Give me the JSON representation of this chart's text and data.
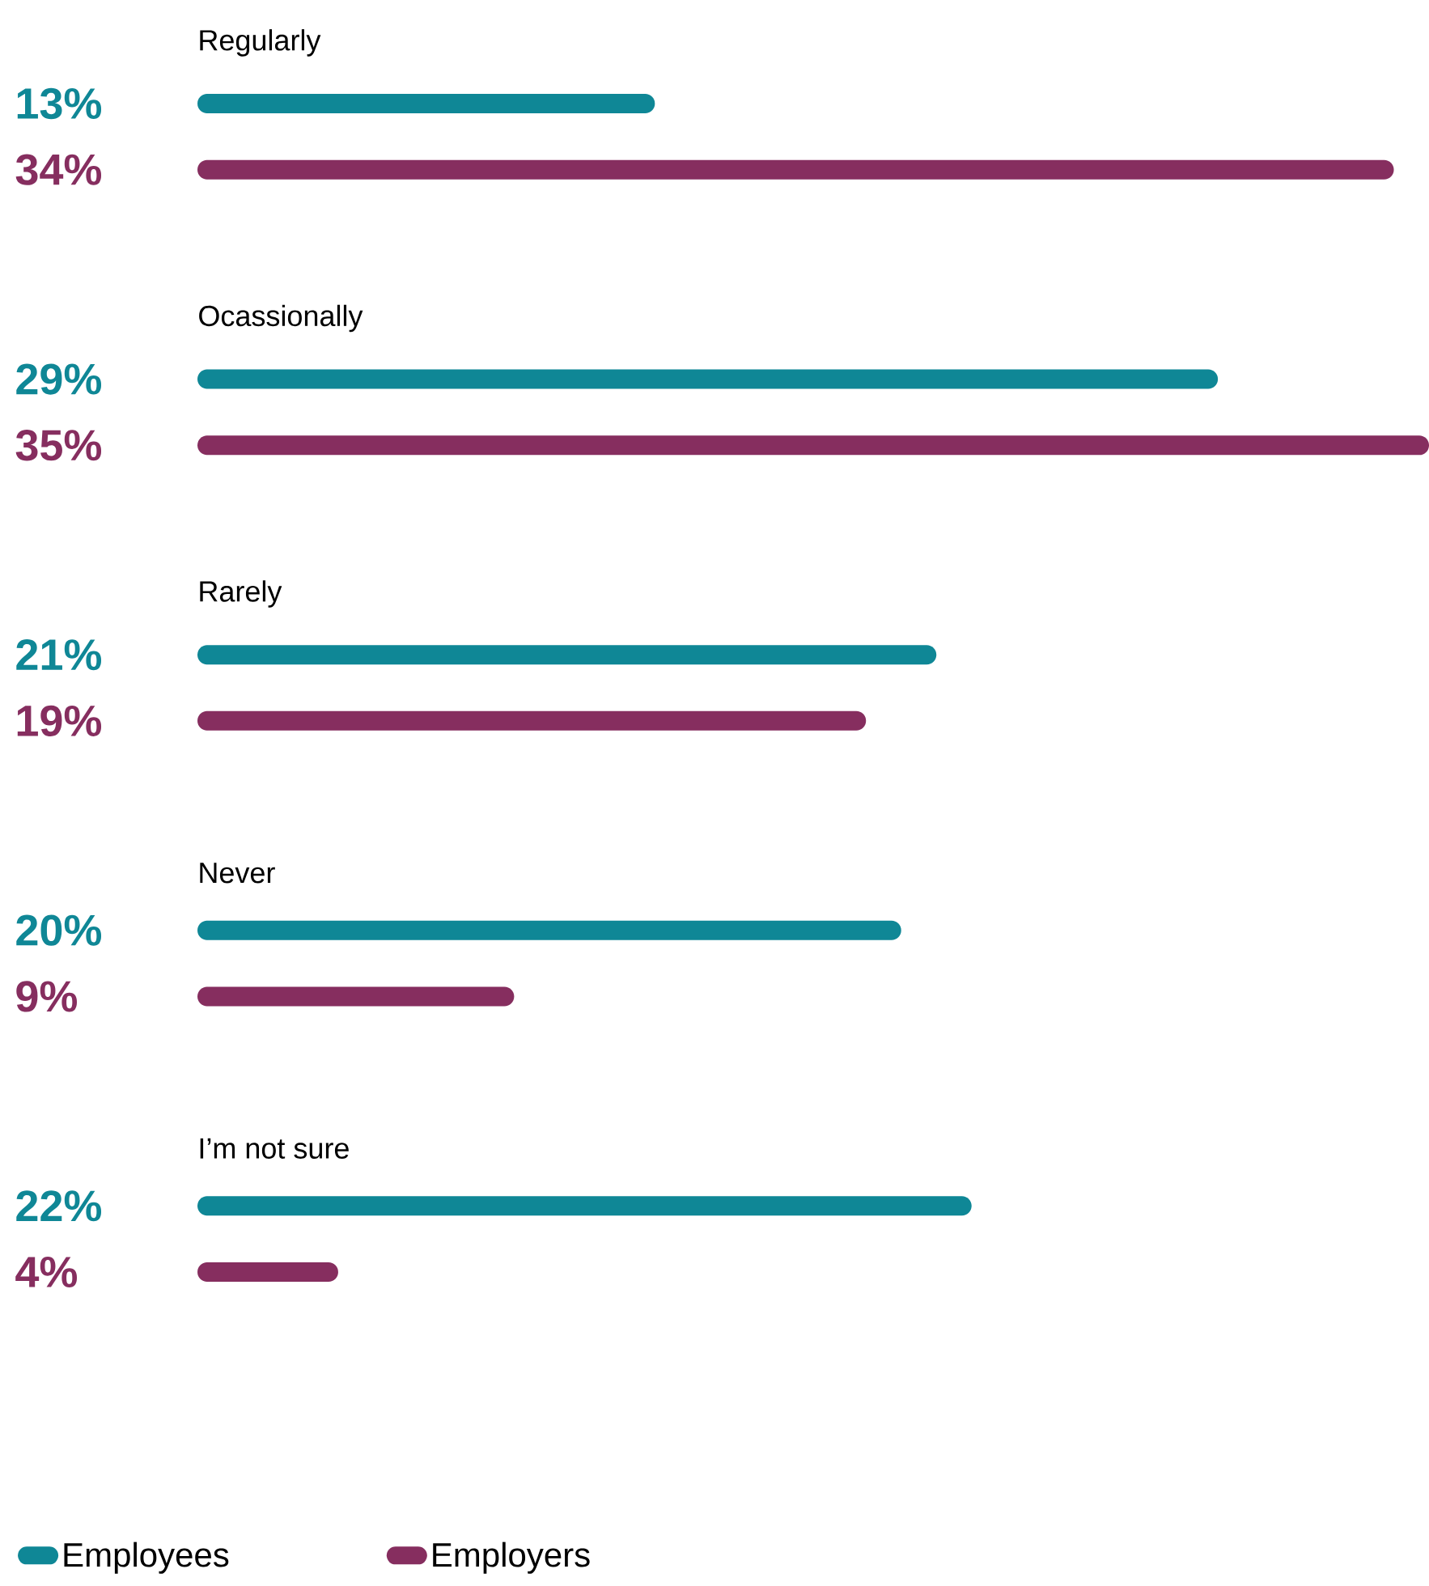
{
  "chart_data": {
    "type": "bar",
    "orientation": "horizontal",
    "categories": [
      "Regularly",
      "Ocassionally",
      "Rarely",
      "Never",
      "I’m not sure"
    ],
    "series": [
      {
        "name": "Employees",
        "color": "#0f8796",
        "values": [
          13,
          29,
          21,
          20,
          22
        ],
        "value_labels": [
          "13%",
          "29%",
          "21%",
          "20%",
          "22%"
        ]
      },
      {
        "name": "Employers",
        "color": "#862e5f",
        "values": [
          34,
          35,
          19,
          9,
          4
        ],
        "value_labels": [
          "34%",
          "35%",
          "19%",
          "9%",
          "4%"
        ]
      }
    ],
    "legend": "bottom"
  }
}
